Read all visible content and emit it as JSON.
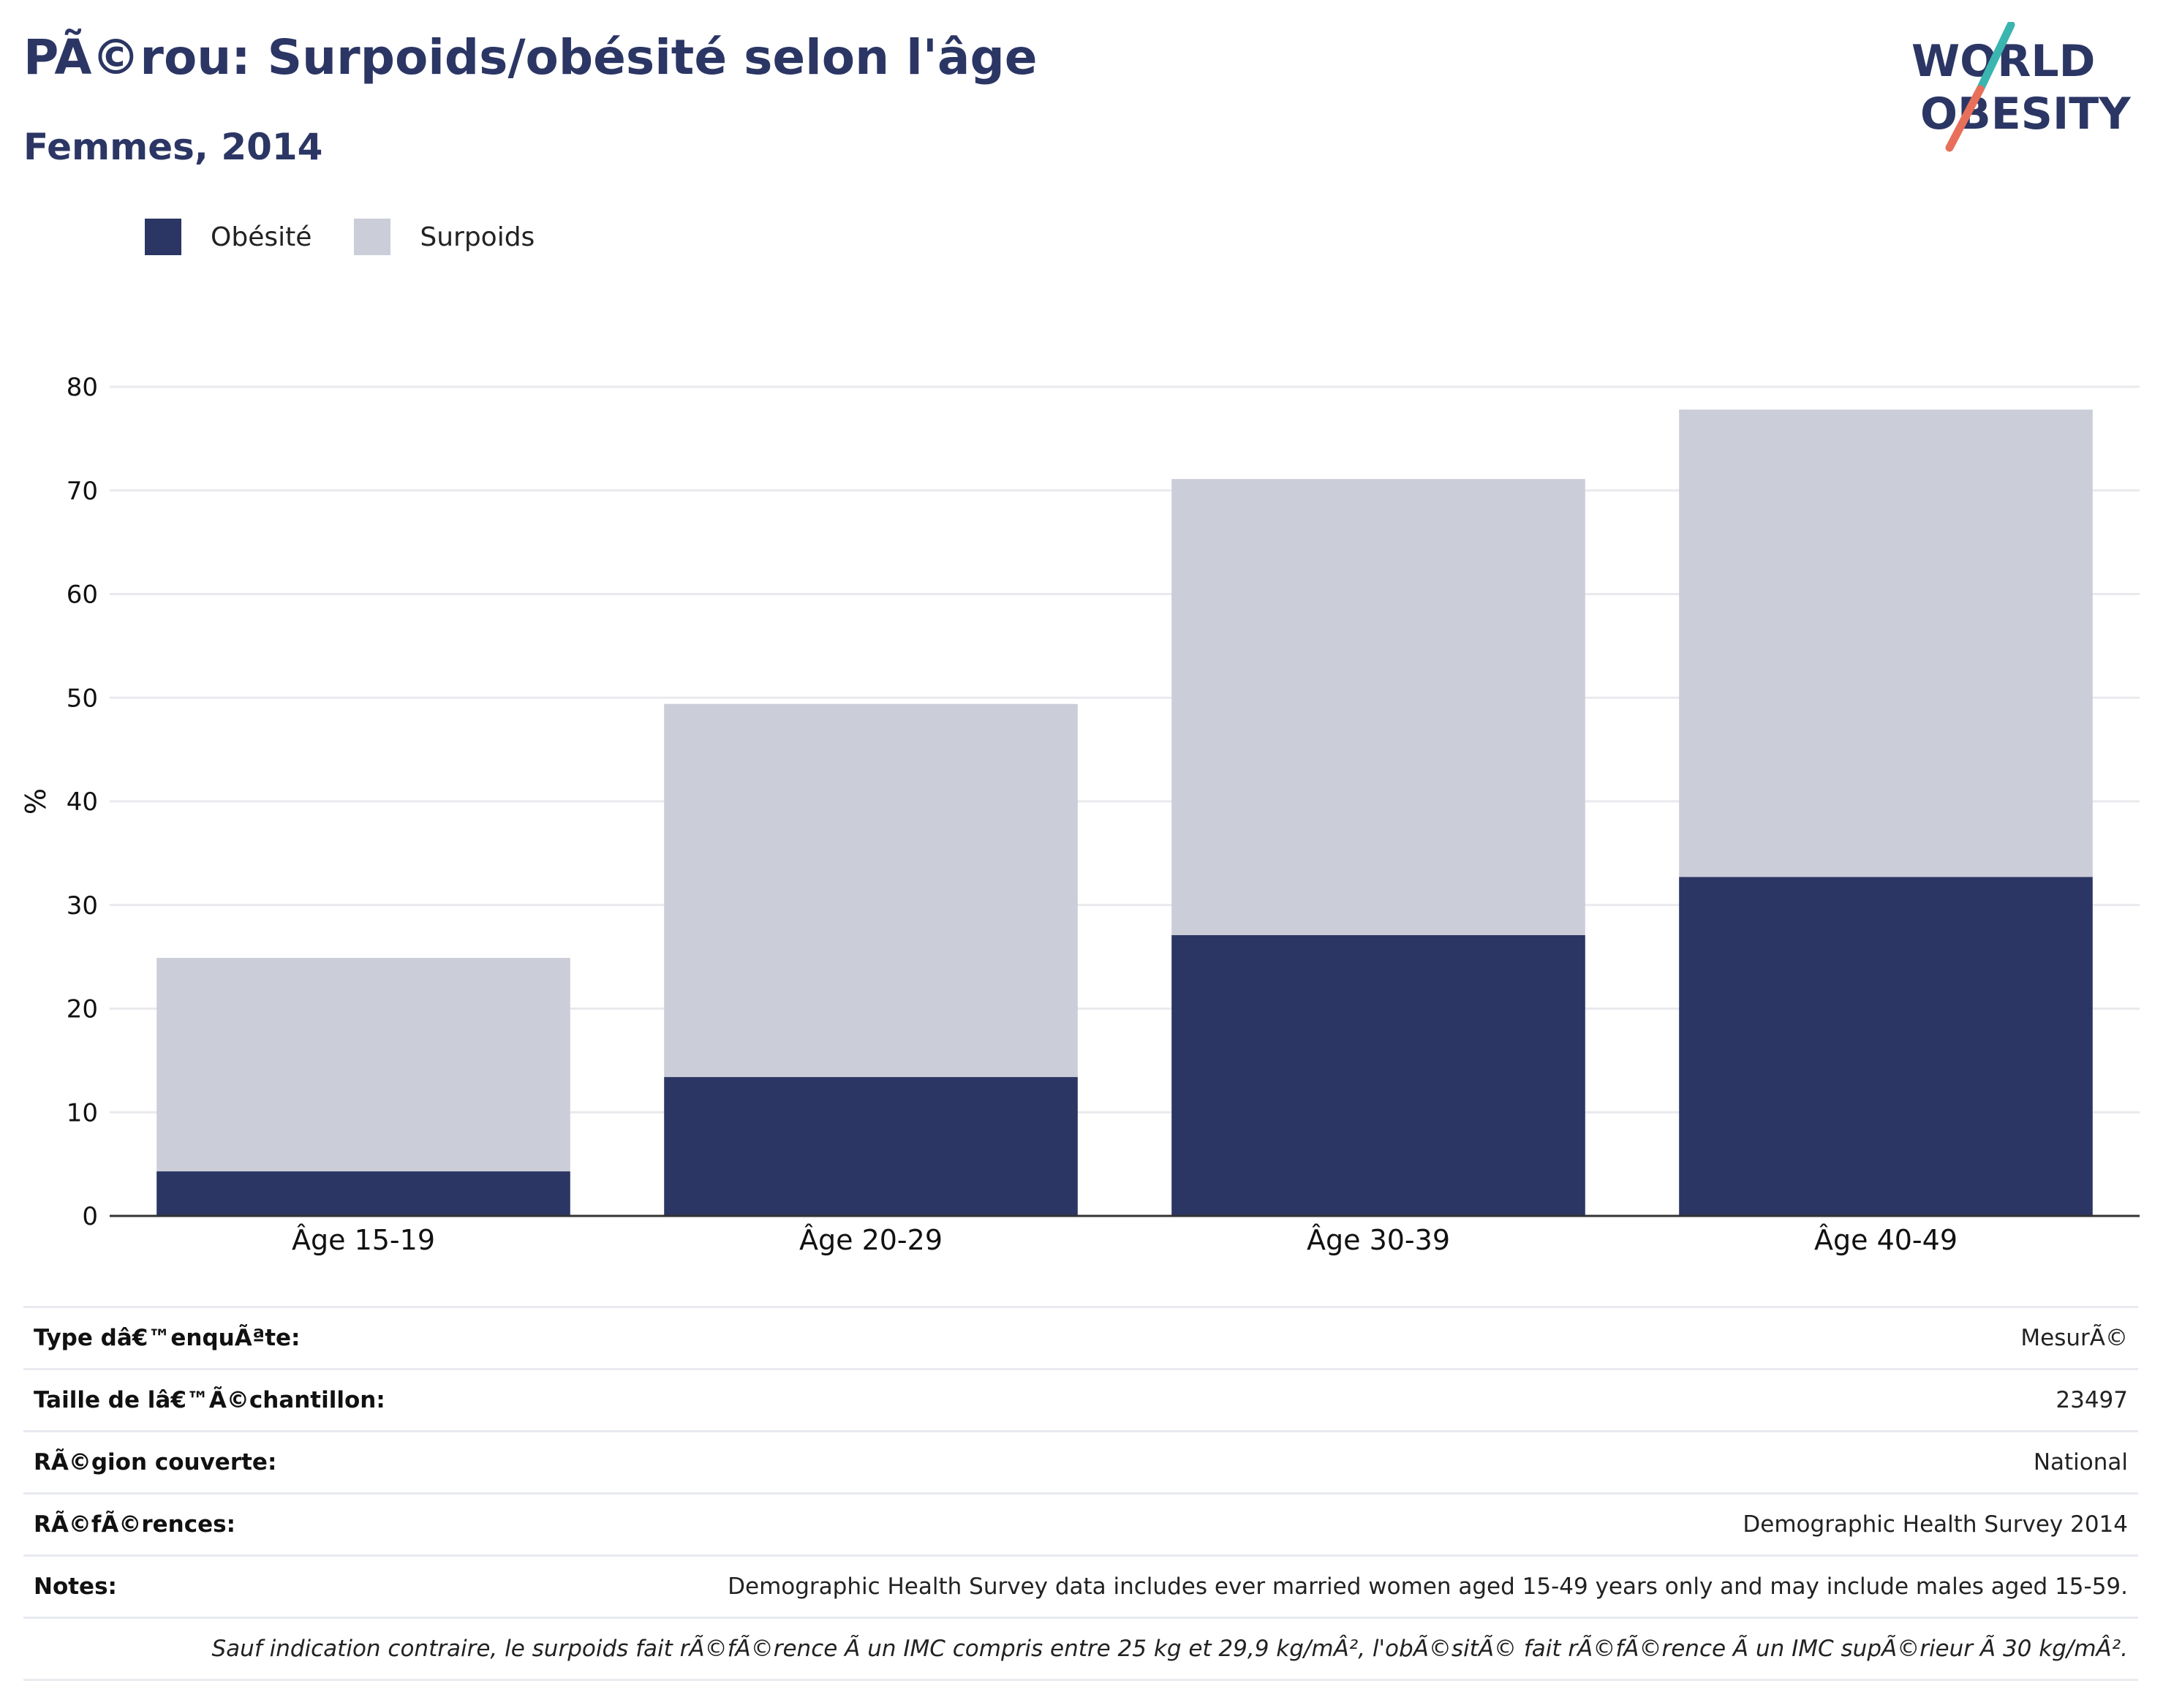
{
  "header": {
    "title": "PÃ©rou: Surpoids/obésité selon l'âge",
    "subtitle": "Femmes, 2014",
    "logo_line1": "WORLD",
    "logo_line2": "OBESITY"
  },
  "colors": {
    "obesity": "#2b3664",
    "overweight": "#cbcdd8",
    "title": "#2b3664",
    "logo_teal": "#3bb5b0",
    "logo_coral": "#e8705b"
  },
  "chart_data": {
    "type": "bar",
    "stacked": true,
    "title": "PÃ©rou: Surpoids/obésité selon l'âge",
    "subtitle": "Femmes, 2014",
    "xlabel": "",
    "ylabel": "%",
    "ylim": [
      0,
      80
    ],
    "yticks": [
      0,
      10,
      20,
      30,
      40,
      50,
      60,
      70,
      80
    ],
    "grid": true,
    "legend_position": "top-left",
    "categories": [
      "Âge 15-19",
      "Âge 20-29",
      "Âge 30-39",
      "Âge 40-49"
    ],
    "series": [
      {
        "name": "Obésité",
        "values": [
          4.3,
          13.4,
          27.1,
          32.7
        ]
      },
      {
        "name": "Surpoids",
        "values": [
          20.6,
          36.0,
          44.0,
          45.1
        ]
      }
    ]
  },
  "info": {
    "rows": [
      {
        "label": "Type dâ€™enquÃªte:",
        "value": "MesurÃ©"
      },
      {
        "label": "Taille de lâ€™Ã©chantillon:",
        "value": "23497"
      },
      {
        "label": "RÃ©gion couverte:",
        "value": "National"
      },
      {
        "label": "RÃ©fÃ©rences:",
        "value": "Demographic Health Survey 2014"
      },
      {
        "label": "Notes:",
        "value": "Demographic Health Survey data includes ever married women aged 15-49 years only and may include males aged 15-59."
      }
    ],
    "footnote": "Sauf indication contraire, le surpoids fait rÃ©fÃ©rence Ã  un IMC compris entre 25 kg et 29,9 kg/mÂ², l'obÃ©sitÃ© fait rÃ©fÃ©rence Ã  un IMC supÃ©rieur Ã  30 kg/mÂ²."
  }
}
